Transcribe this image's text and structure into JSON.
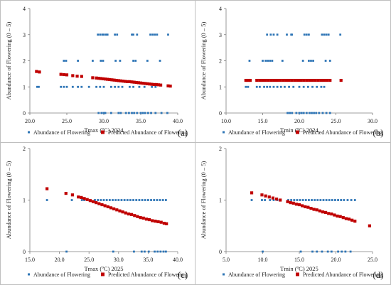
{
  "chart_data": [
    {
      "type": "scatter",
      "tag": "(a)",
      "xlabel": "Tmax (ºC) 2024",
      "ylabel": "Abundance of Flowering (0 – 5)",
      "xlim": [
        20.0,
        40.0
      ],
      "ylim": [
        0,
        4
      ],
      "xticks": [
        "20.0",
        "25.0",
        "30.0",
        "35.0",
        "40.0"
      ],
      "yticks": [
        "0",
        "1",
        "2",
        "3",
        "4"
      ],
      "xtickvals": [
        20,
        25,
        30,
        35,
        40
      ],
      "ytickvals": [
        0,
        1,
        2,
        3,
        4
      ],
      "legend": [
        "Abundance of Flowering",
        "Predicted Abundance of Flowering"
      ],
      "series": [
        {
          "name": "Abundance of Flowering",
          "color": "#2e75b6",
          "x": [
            21.0,
            21.2,
            29.2,
            29.5,
            29.8,
            30.0,
            30.3,
            30.5,
            31.5,
            31.8,
            33.8,
            34.0,
            34.5,
            36.3,
            36.6,
            36.9,
            37.2,
            38.7,
            24.6,
            24.9,
            26.5,
            28.5,
            29.6,
            29.9,
            31.6,
            32.2,
            34.0,
            34.3,
            35.9,
            37.6,
            24.2,
            24.6,
            25.0,
            25.8,
            26.5,
            27.0,
            28.0,
            29.0,
            29.5,
            30.0,
            31.0,
            31.5,
            32.0,
            32.5,
            33.5,
            34.0,
            34.8,
            35.5,
            36.5,
            37.0,
            29.3,
            29.7,
            30.0,
            30.2,
            31.0,
            32.0,
            32.3,
            33.0,
            33.4,
            33.8,
            34.1,
            34.5,
            35.0,
            35.3,
            35.6,
            36.0,
            36.4,
            37.0,
            37.8,
            38.6
          ],
          "y": [
            1,
            1,
            3,
            3,
            3,
            3,
            3,
            3,
            3,
            3,
            3,
            3,
            3,
            3,
            3,
            3,
            3,
            3,
            2,
            2,
            2,
            2,
            2,
            2,
            2,
            2,
            2,
            2,
            2,
            2,
            1,
            1,
            1,
            1,
            1,
            1,
            1,
            1,
            1,
            1,
            1,
            1,
            1,
            1,
            1,
            1,
            1,
            1,
            1,
            1,
            0,
            0,
            0,
            0,
            0,
            0,
            0,
            0,
            0,
            0,
            0,
            0,
            0,
            0,
            0,
            0,
            0,
            0,
            0,
            0
          ]
        },
        {
          "name": "Predicted Abundance of Flowering",
          "color": "#c00000",
          "x": [
            20.9,
            21.3,
            24.2,
            24.6,
            25.0,
            25.8,
            26.4,
            27.0,
            28.5,
            29.0,
            29.3,
            29.6,
            29.9,
            30.2,
            30.5,
            30.8,
            31.1,
            31.4,
            31.7,
            32.0,
            32.3,
            32.6,
            32.9,
            33.2,
            33.5,
            33.8,
            34.1,
            34.4,
            34.7,
            35.0,
            35.3,
            35.6,
            35.9,
            36.2,
            36.5,
            36.8,
            37.1,
            37.4,
            37.7,
            38.7,
            39.0
          ],
          "y": [
            1.59,
            1.57,
            1.48,
            1.47,
            1.46,
            1.43,
            1.41,
            1.4,
            1.35,
            1.34,
            1.33,
            1.32,
            1.31,
            1.3,
            1.29,
            1.28,
            1.27,
            1.26,
            1.25,
            1.24,
            1.23,
            1.22,
            1.21,
            1.2,
            1.2,
            1.19,
            1.18,
            1.17,
            1.16,
            1.15,
            1.14,
            1.13,
            1.12,
            1.11,
            1.1,
            1.09,
            1.09,
            1.08,
            1.07,
            1.04,
            1.03
          ]
        }
      ]
    },
    {
      "type": "scatter",
      "tag": "(b)",
      "xlabel": "Tmin (ºC) 2024",
      "ylabel": "Abundance of Flowering (0 – 5)",
      "xlim": [
        10.0,
        30.0
      ],
      "ylim": [
        0,
        4
      ],
      "xticks": [
        "10.0",
        "15.0",
        "20.0",
        "25.0",
        "30.0"
      ],
      "yticks": [
        "0",
        "1",
        "2",
        "3",
        "4"
      ],
      "xtickvals": [
        10,
        15,
        20,
        25,
        30
      ],
      "ytickvals": [
        0,
        1,
        2,
        3,
        4
      ],
      "legend": [
        "Abundance of Flowering",
        "Predicted Abundance of Flowering"
      ],
      "series": [
        {
          "name": "Abundance of Flowering",
          "color": "#2e75b6",
          "x": [
            15.6,
            16.1,
            16.5,
            17.0,
            18.3,
            18.9,
            19.0,
            20.7,
            21.0,
            21.3,
            23.1,
            23.4,
            23.7,
            24.0,
            25.6,
            13.2,
            15.0,
            15.4,
            15.7,
            16.0,
            16.3,
            17.7,
            20.5,
            21.3,
            21.6,
            21.9,
            23.6,
            24.2,
            12.7,
            13.0,
            14.2,
            14.6,
            15.2,
            15.6,
            16.0,
            16.5,
            17.0,
            17.5,
            18.0,
            18.6,
            19.2,
            20.0,
            20.6,
            21.2,
            21.8,
            22.4,
            23.0,
            23.4,
            18.4,
            18.7,
            19.0,
            19.6,
            20.0,
            20.3,
            20.6,
            21.0,
            21.4,
            21.7,
            22.0,
            22.3,
            22.7,
            23.2,
            23.7,
            24.2
          ],
          "y": [
            3,
            3,
            3,
            3,
            3,
            3,
            3,
            3,
            3,
            3,
            3,
            3,
            3,
            3,
            3,
            2,
            2,
            2,
            2,
            2,
            2,
            2,
            2,
            2,
            2,
            2,
            2,
            2,
            1,
            1,
            1,
            1,
            1,
            1,
            1,
            1,
            1,
            1,
            1,
            1,
            1,
            1,
            1,
            1,
            1,
            1,
            1,
            1,
            0,
            0,
            0,
            0,
            0,
            0,
            0,
            0,
            0,
            0,
            0,
            0,
            0,
            0,
            0,
            0
          ]
        },
        {
          "name": "Predicted Abundance of Flowering",
          "color": "#c00000",
          "x": [
            12.7,
            13.0,
            13.3,
            14.2,
            14.6,
            15.0,
            15.4,
            15.8,
            16.2,
            16.6,
            17.0,
            17.4,
            17.8,
            18.2,
            18.6,
            19.0,
            19.4,
            19.8,
            20.2,
            20.6,
            21.0,
            21.4,
            21.8,
            22.2,
            22.6,
            23.0,
            23.4,
            23.8,
            24.2,
            25.7
          ],
          "y": [
            1.25,
            1.25,
            1.25,
            1.25,
            1.25,
            1.25,
            1.25,
            1.25,
            1.25,
            1.25,
            1.25,
            1.25,
            1.25,
            1.25,
            1.25,
            1.25,
            1.25,
            1.25,
            1.25,
            1.25,
            1.25,
            1.25,
            1.25,
            1.25,
            1.25,
            1.25,
            1.25,
            1.25,
            1.25,
            1.25
          ]
        }
      ]
    },
    {
      "type": "scatter",
      "tag": "(c)",
      "xlabel": "Tmax (ºC) 2025",
      "ylabel": "Abundance of Flowering (0 – 5)",
      "xlim": [
        15.0,
        40.0
      ],
      "ylim": [
        0,
        2
      ],
      "xticks": [
        "15.0",
        "20.0",
        "25.0",
        "30.0",
        "35.0",
        "40.0"
      ],
      "yticks": [
        "0",
        "1",
        "2"
      ],
      "xtickvals": [
        15,
        20,
        25,
        30,
        35,
        40
      ],
      "ytickvals": [
        0,
        1,
        2
      ],
      "legend": [
        "Abundance of Flowering",
        "Predicted Abundance of Flowering"
      ],
      "series": [
        {
          "name": "Abundance of Flowering",
          "color": "#2e75b6",
          "x": [
            17.9,
            22.1,
            23.8,
            24.2,
            26.0,
            26.5,
            27.0,
            27.5,
            28.0,
            28.5,
            29.0,
            29.5,
            30.0,
            30.5,
            31.0,
            31.5,
            32.0,
            32.5,
            33.0,
            33.5,
            34.0,
            34.5,
            35.0,
            35.5,
            36.0,
            36.5,
            37.0,
            37.5,
            38.0,
            21.2,
            29.1,
            32.6,
            33.9,
            34.4,
            35.1,
            36.1,
            36.6,
            37.1,
            37.6,
            38.0
          ],
          "y": [
            1,
            1,
            1,
            1,
            1,
            1,
            1,
            1,
            1,
            1,
            1,
            1,
            1,
            1,
            1,
            1,
            1,
            1,
            1,
            1,
            1,
            1,
            1,
            1,
            1,
            1,
            1,
            1,
            1,
            0,
            0,
            0,
            0,
            0,
            0,
            0,
            0,
            0,
            0,
            0
          ]
        },
        {
          "name": "Predicted Abundance of Flowering",
          "color": "#c00000",
          "x": [
            17.9,
            21.1,
            22.2,
            23.2,
            23.7,
            24.2,
            24.7,
            25.2,
            25.7,
            26.2,
            26.7,
            27.2,
            27.7,
            28.2,
            28.7,
            29.2,
            29.7,
            30.2,
            30.7,
            31.2,
            31.7,
            32.2,
            32.7,
            33.2,
            33.7,
            34.2,
            34.7,
            35.2,
            35.7,
            36.2,
            36.7,
            37.2,
            37.7,
            38.1
          ],
          "y": [
            1.22,
            1.13,
            1.1,
            1.06,
            1.05,
            1.03,
            1.01,
            0.99,
            0.97,
            0.95,
            0.93,
            0.91,
            0.89,
            0.87,
            0.85,
            0.83,
            0.81,
            0.79,
            0.77,
            0.75,
            0.73,
            0.72,
            0.7,
            0.68,
            0.66,
            0.65,
            0.63,
            0.62,
            0.6,
            0.59,
            0.58,
            0.57,
            0.55,
            0.54
          ]
        }
      ]
    },
    {
      "type": "scatter",
      "tag": "(d)",
      "xlabel": "Tmin (ºC) 2025",
      "ylabel": "Abundance of Flowering (0 – 5)",
      "xlim": [
        5.0,
        25.0
      ],
      "ylim": [
        0,
        2
      ],
      "xticks": [
        "5.0",
        "10.0",
        "15.0",
        "20.0",
        "25.0"
      ],
      "yticks": [
        "0",
        "1",
        "2"
      ],
      "xtickvals": [
        5,
        10,
        15,
        20,
        25
      ],
      "ytickvals": [
        0,
        1,
        2
      ],
      "legend": [
        "Abundance of Flowering",
        "Predicted Abundance of Flowering"
      ],
      "series": [
        {
          "name": "Abundance of Flowering",
          "color": "#2e75b6",
          "x": [
            8.5,
            9.9,
            10.3,
            11.0,
            11.5,
            12.0,
            13.5,
            13.9,
            14.3,
            14.7,
            15.1,
            15.5,
            15.9,
            16.3,
            16.7,
            17.1,
            17.5,
            17.9,
            18.3,
            18.7,
            19.1,
            19.5,
            19.9,
            20.3,
            20.7,
            21.1,
            21.6,
            22.1,
            22.6,
            10.0,
            15.2,
            16.8,
            17.4,
            18.1,
            18.9,
            19.4,
            20.3,
            20.8,
            21.3,
            22.0
          ],
          "y": [
            1,
            1,
            1,
            1,
            1,
            1,
            1,
            1,
            1,
            1,
            1,
            1,
            1,
            1,
            1,
            1,
            1,
            1,
            1,
            1,
            1,
            1,
            1,
            1,
            1,
            1,
            1,
            1,
            1,
            0,
            0,
            0,
            0,
            0,
            0,
            0,
            0,
            0,
            0,
            0
          ]
        },
        {
          "name": "Predicted Abundance of Flowering",
          "color": "#c00000",
          "x": [
            8.5,
            9.9,
            10.4,
            10.9,
            11.4,
            11.9,
            12.4,
            13.4,
            13.8,
            14.2,
            14.6,
            15.0,
            15.4,
            15.8,
            16.2,
            16.6,
            17.0,
            17.4,
            17.8,
            18.2,
            18.6,
            19.0,
            19.4,
            19.8,
            20.2,
            20.6,
            21.0,
            21.4,
            21.8,
            22.2,
            22.6,
            24.6
          ],
          "y": [
            1.14,
            1.1,
            1.08,
            1.06,
            1.04,
            1.02,
            1.0,
            0.97,
            0.95,
            0.94,
            0.92,
            0.91,
            0.89,
            0.87,
            0.86,
            0.84,
            0.82,
            0.81,
            0.79,
            0.77,
            0.76,
            0.74,
            0.73,
            0.71,
            0.69,
            0.68,
            0.66,
            0.64,
            0.63,
            0.61,
            0.59,
            0.5
          ]
        }
      ]
    }
  ]
}
